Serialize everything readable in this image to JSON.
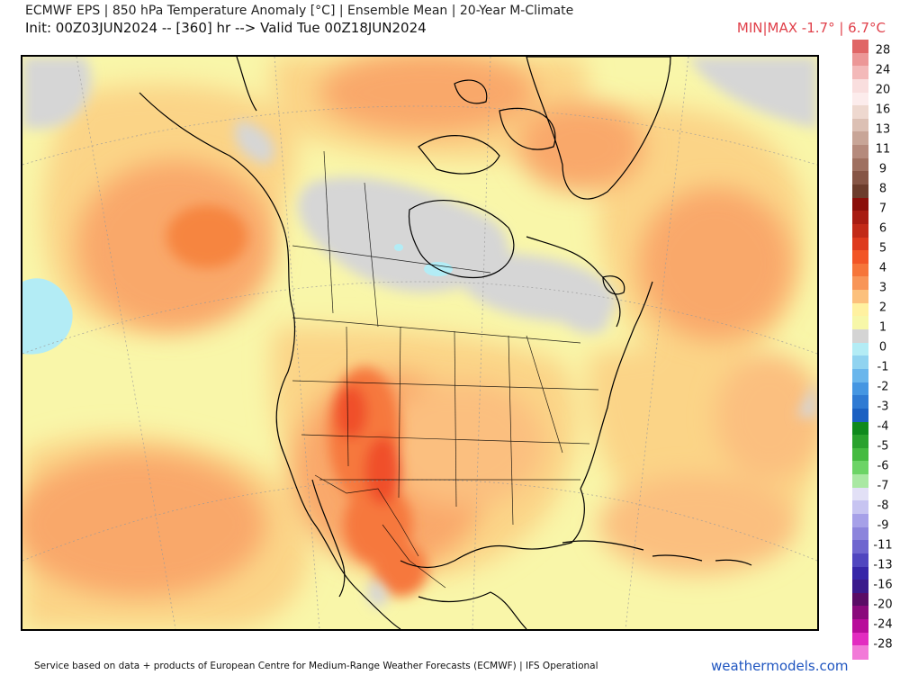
{
  "header": {
    "title_line1": "ECMWF EPS | 850 hPa Temperature Anomaly [°C] | Ensemble Mean | 20-Year M-Climate",
    "title_line2": "Init: 00Z03JUN2024 -- [360] hr --> Valid Tue 00Z18JUN2024",
    "minmax": "MIN|MAX -1.7° | 6.7°C"
  },
  "legend": {
    "labels": [
      "28",
      "24",
      "20",
      "16",
      "13",
      "11",
      "9",
      "8",
      "7",
      "6",
      "5",
      "4",
      "3",
      "2",
      "1",
      "0",
      "-1",
      "-2",
      "-3",
      "-4",
      "-5",
      "-6",
      "-7",
      "-8",
      "-9",
      "-11",
      "-13",
      "-16",
      "-20",
      "-24",
      "-28"
    ],
    "colors": [
      "#e06666",
      "#ec9797",
      "#f3b9b9",
      "#f9dede",
      "#fcecec",
      "#eed8cf",
      "#dcc0b4",
      "#c8a597",
      "#b58a7c",
      "#9f7060",
      "#865545",
      "#6c3c2c",
      "#8b0f0a",
      "#a81c12",
      "#c22a18",
      "#de3a1e",
      "#f25526",
      "#f6753a",
      "#f89558",
      "#fcc07c",
      "#fff1a0",
      "#f7f7a8",
      "#d4d4d4",
      "#b3ecf5",
      "#90d3f0",
      "#6ab6ec",
      "#4596e2",
      "#2f7ad3",
      "#1b60c2",
      "#0f8a1c",
      "#2aa22d",
      "#45bb40",
      "#6cd466",
      "#a9e8a3",
      "#e2e0f6",
      "#c7c4f1",
      "#a6a0e8",
      "#8c84dc",
      "#6f66cf",
      "#5046bf",
      "#3626a8",
      "#3a1a8c",
      "#5a0c66",
      "#8a0a7c",
      "#b80c9a",
      "#e22cc0",
      "#f27ad8"
    ]
  },
  "map": {
    "type": "temperature-anomaly-map",
    "region": "North America",
    "min_value": -1.7,
    "max_value": 6.7,
    "units": "°C"
  },
  "footer": {
    "credit": "Service based on data + products of European Centre for Medium-Range Weather Forecasts (ECMWF) | IFS Operational",
    "site": "weathermodels.com"
  }
}
